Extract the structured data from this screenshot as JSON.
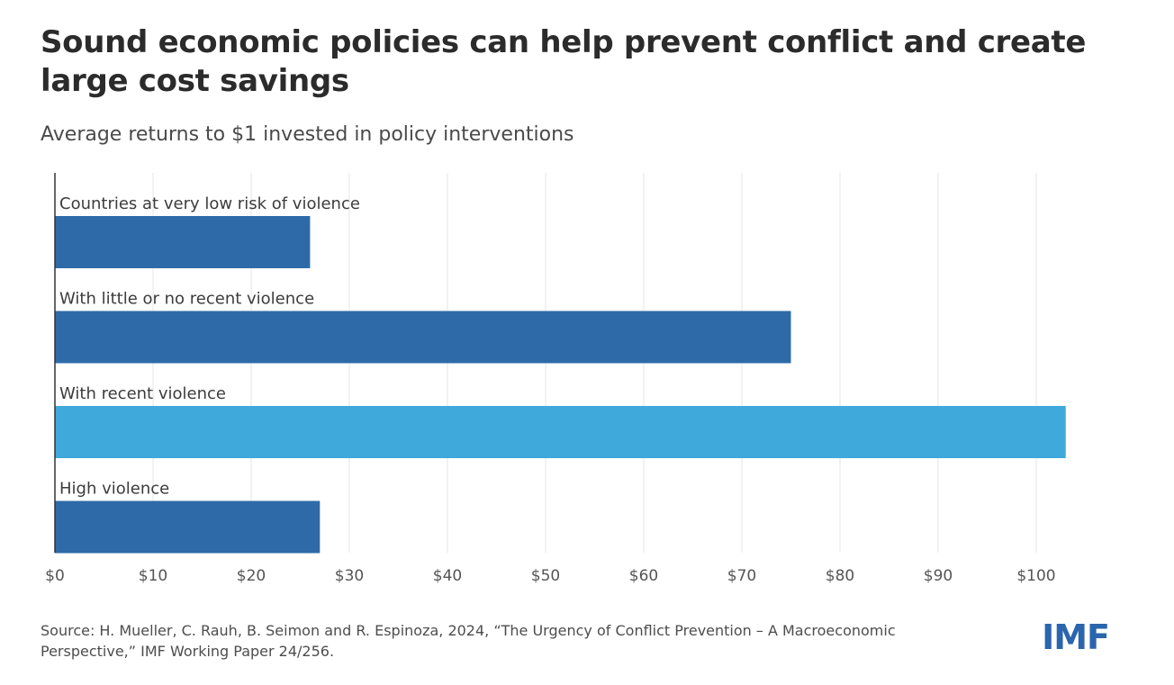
{
  "title": "Sound economic policies can help prevent conflict and create large cost savings",
  "subtitle": "Average returns to $1 invested in policy interventions",
  "source": "Source: H. Mueller, C. Rauh, B. Seimon and R. Espinoza, 2024, “The Urgency of Conflict Prevention – A Macroeconomic Perspective,” IMF Working Paper 24/256.",
  "logo_text": "IMF",
  "colors": {
    "primary": "#2e6aa8",
    "highlight": "#3fa9dc",
    "grid": "#e6e6e6",
    "axis": "#333333",
    "text": "#444444"
  },
  "chart_data": {
    "type": "bar",
    "orientation": "horizontal",
    "categories": [
      "Countries at very low risk of violence",
      "With little or no recent violence",
      "With recent violence",
      "High violence"
    ],
    "values": [
      26,
      75,
      103,
      27
    ],
    "highlight_index": 2,
    "xlim": [
      0,
      105
    ],
    "xticks": [
      0,
      10,
      20,
      30,
      40,
      50,
      60,
      70,
      80,
      90,
      100
    ],
    "xtick_labels": [
      "$0",
      "$10",
      "$20",
      "$30",
      "$40",
      "$50",
      "$60",
      "$70",
      "$80",
      "$90",
      "$100"
    ],
    "grid": true
  }
}
